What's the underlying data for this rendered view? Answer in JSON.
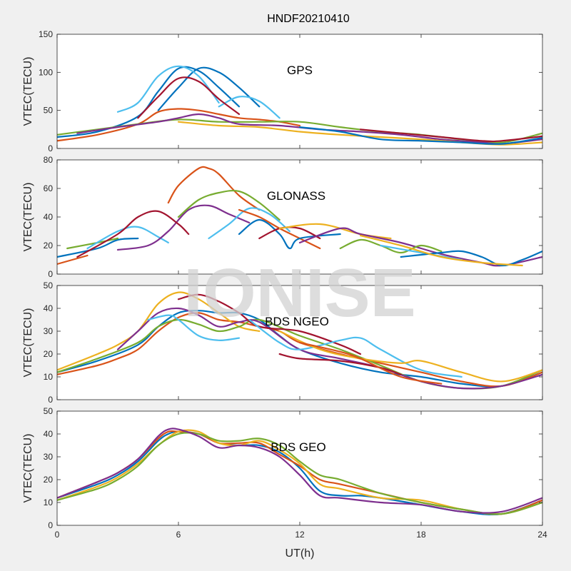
{
  "figure": {
    "title": "HNDF20210410",
    "xlabel": "UT(h)",
    "watermark": "IONISE"
  },
  "chart_data": [
    {
      "type": "line",
      "label": "GPS",
      "ylabel": "VTEC(TECU)",
      "xlim": [
        0,
        24
      ],
      "ylim": [
        0,
        150
      ],
      "xticks": [
        0,
        6,
        12,
        18,
        24
      ],
      "yticks": [
        0,
        50,
        100,
        150
      ],
      "grid": false,
      "series": [
        {
          "color": "#0072bd",
          "x": [
            0,
            2,
            4,
            5,
            6,
            7,
            8,
            9
          ],
          "y": [
            15,
            22,
            42,
            75,
            105,
            102,
            80,
            55
          ]
        },
        {
          "color": "#0072bd",
          "x": [
            5,
            6,
            7,
            8,
            9,
            10
          ],
          "y": [
            50,
            80,
            105,
            100,
            80,
            55
          ]
        },
        {
          "color": "#4dbeee",
          "x": [
            3,
            4,
            5,
            6,
            7,
            8
          ],
          "y": [
            48,
            60,
            95,
            108,
            95,
            60
          ]
        },
        {
          "color": "#4dbeee",
          "x": [
            8,
            9,
            10,
            11
          ],
          "y": [
            55,
            68,
            62,
            40
          ]
        },
        {
          "color": "#a2142f",
          "x": [
            4,
            5,
            6,
            7,
            8,
            9
          ],
          "y": [
            40,
            68,
            92,
            88,
            65,
            45
          ]
        },
        {
          "color": "#d95319",
          "x": [
            0,
            2,
            4,
            5,
            6,
            7,
            8,
            9,
            10,
            11,
            12
          ],
          "y": [
            10,
            18,
            32,
            48,
            52,
            50,
            45,
            40,
            38,
            35,
            30
          ]
        },
        {
          "color": "#77ac30",
          "x": [
            0,
            2,
            4,
            6,
            8,
            10,
            12,
            14,
            16,
            18,
            20,
            22,
            24
          ],
          "y": [
            18,
            25,
            32,
            38,
            35,
            35,
            35,
            28,
            22,
            18,
            12,
            8,
            20
          ]
        },
        {
          "color": "#7e2f8e",
          "x": [
            1,
            3,
            5,
            6,
            7,
            8,
            9,
            11,
            13,
            15,
            17,
            19,
            21,
            22,
            24
          ],
          "y": [
            20,
            28,
            35,
            40,
            45,
            40,
            32,
            30,
            25,
            22,
            18,
            12,
            8,
            6,
            12
          ]
        },
        {
          "color": "#edb120",
          "x": [
            6,
            8,
            10,
            12,
            14,
            16,
            18,
            20,
            22,
            24
          ],
          "y": [
            35,
            30,
            28,
            22,
            18,
            15,
            12,
            8,
            5,
            8
          ]
        },
        {
          "color": "#0072bd",
          "x": [
            12,
            14,
            16,
            18,
            20,
            22,
            24
          ],
          "y": [
            28,
            22,
            12,
            10,
            8,
            6,
            14
          ]
        },
        {
          "color": "#a2142f",
          "x": [
            15,
            17,
            19,
            21,
            22,
            24
          ],
          "y": [
            25,
            20,
            15,
            10,
            10,
            16
          ]
        }
      ]
    },
    {
      "type": "line",
      "label": "GLONASS",
      "ylabel": "VTEC(TECU)",
      "xlim": [
        0,
        24
      ],
      "ylim": [
        0,
        80
      ],
      "xticks": [
        0,
        6,
        12,
        18,
        24
      ],
      "yticks": [
        0,
        20,
        40,
        60,
        80
      ],
      "grid": false,
      "series": [
        {
          "color": "#0072bd",
          "x": [
            0,
            2,
            3,
            4
          ],
          "y": [
            12,
            18,
            24,
            25
          ]
        },
        {
          "color": "#d95319",
          "x": [
            0,
            1.5
          ],
          "y": [
            7,
            13
          ]
        },
        {
          "color": "#77ac30",
          "x": [
            0.5,
            2,
            3
          ],
          "y": [
            18,
            22,
            25
          ]
        },
        {
          "color": "#4dbeee",
          "x": [
            1.5,
            3,
            4,
            5,
            5.5
          ],
          "y": [
            18,
            30,
            33,
            26,
            22
          ]
        },
        {
          "color": "#7e2f8e",
          "x": [
            3,
            4.5,
            5.5,
            6.5,
            7.5,
            8.5,
            9.5
          ],
          "y": [
            17,
            20,
            30,
            45,
            48,
            42,
            36
          ]
        },
        {
          "color": "#a2142f",
          "x": [
            1,
            3,
            4,
            5,
            6,
            6.5
          ],
          "y": [
            12,
            28,
            40,
            44,
            35,
            28
          ]
        },
        {
          "color": "#d95319",
          "x": [
            5.5,
            6,
            7,
            7.5,
            8,
            9,
            10
          ],
          "y": [
            50,
            62,
            74,
            74,
            70,
            55,
            45
          ]
        },
        {
          "color": "#77ac30",
          "x": [
            6,
            7,
            8,
            9,
            10,
            11
          ],
          "y": [
            40,
            52,
            57,
            58,
            50,
            38
          ]
        },
        {
          "color": "#4dbeee",
          "x": [
            7.5,
            8.5,
            9.5,
            10.5,
            11.5
          ],
          "y": [
            25,
            35,
            46,
            42,
            30
          ]
        },
        {
          "color": "#d95319",
          "x": [
            9,
            10,
            11,
            12,
            13
          ],
          "y": [
            45,
            40,
            32,
            25,
            18
          ]
        },
        {
          "color": "#0072bd",
          "x": [
            9,
            10,
            11,
            11.5,
            12,
            14
          ],
          "y": [
            28,
            38,
            28,
            18,
            25,
            28
          ]
        },
        {
          "color": "#a2142f",
          "x": [
            10,
            11,
            12,
            13
          ],
          "y": [
            25,
            32,
            32,
            25
          ]
        },
        {
          "color": "#edb120",
          "x": [
            11,
            13,
            15,
            16.5
          ],
          "y": [
            32,
            35,
            28,
            25
          ]
        },
        {
          "color": "#7e2f8e",
          "x": [
            12,
            14,
            15,
            17,
            19,
            21,
            22,
            24
          ],
          "y": [
            22,
            32,
            28,
            22,
            14,
            8,
            6,
            12
          ]
        },
        {
          "color": "#77ac30",
          "x": [
            14,
            15,
            16,
            17,
            18,
            19
          ],
          "y": [
            18,
            24,
            20,
            15,
            20,
            16
          ]
        },
        {
          "color": "#4dbeee",
          "x": [
            16,
            18,
            20
          ],
          "y": [
            20,
            15,
            10
          ]
        },
        {
          "color": "#0072bd",
          "x": [
            17,
            19,
            20,
            21,
            22,
            23,
            24
          ],
          "y": [
            12,
            15,
            16,
            12,
            6,
            10,
            16
          ]
        },
        {
          "color": "#edb120",
          "x": [
            15,
            17,
            19,
            21,
            23
          ],
          "y": [
            27,
            20,
            12,
            8,
            6
          ]
        }
      ]
    },
    {
      "type": "line",
      "label": "BDS NGEO",
      "ylabel": "VTEC(TECU)",
      "xlim": [
        0,
        24
      ],
      "ylim": [
        0,
        50
      ],
      "xticks": [
        0,
        6,
        12,
        18,
        24
      ],
      "yticks": [
        0,
        10,
        20,
        30,
        40,
        50
      ],
      "grid": false,
      "series": [
        {
          "color": "#0072bd",
          "x": [
            0,
            2,
            4,
            5,
            6,
            7,
            8,
            9,
            10,
            11,
            12,
            14,
            16,
            18,
            20,
            22,
            24
          ],
          "y": [
            12,
            17,
            24,
            32,
            38,
            39,
            38,
            38,
            35,
            28,
            22,
            16,
            12,
            10,
            7,
            6,
            12
          ]
        },
        {
          "color": "#d95319",
          "x": [
            0,
            2,
            3,
            4,
            5,
            6,
            7,
            8,
            9,
            10,
            11,
            12,
            14,
            16,
            18,
            20,
            22,
            24
          ],
          "y": [
            11,
            15,
            18,
            22,
            30,
            36,
            38,
            35,
            34,
            32,
            30,
            25,
            20,
            16,
            12,
            8,
            6,
            12
          ]
        },
        {
          "color": "#edb120",
          "x": [
            0,
            2,
            3,
            4,
            5,
            6,
            7,
            8,
            9,
            10
          ],
          "y": [
            13,
            20,
            24,
            30,
            42,
            47,
            44,
            38,
            32,
            30
          ]
        },
        {
          "color": "#77ac30",
          "x": [
            0,
            2,
            4,
            5,
            6,
            7,
            8,
            9,
            10,
            12,
            14,
            16,
            18,
            20,
            22,
            24
          ],
          "y": [
            12,
            18,
            25,
            32,
            35,
            33,
            30,
            32,
            35,
            28,
            22,
            15,
            8,
            5,
            6,
            13
          ]
        },
        {
          "color": "#7e2f8e",
          "x": [
            3,
            4,
            5,
            6,
            7,
            8,
            9,
            10,
            12,
            14,
            16,
            18,
            20,
            22,
            24
          ],
          "y": [
            22,
            30,
            38,
            40,
            37,
            32,
            34,
            34,
            22,
            18,
            14,
            8,
            5,
            6,
            11
          ]
        },
        {
          "color": "#a2142f",
          "x": [
            6,
            7,
            8,
            9,
            10,
            12,
            14,
            15
          ],
          "y": [
            44,
            46,
            43,
            38,
            32,
            30,
            24,
            20
          ]
        },
        {
          "color": "#4dbeee",
          "x": [
            4.5,
            5.5,
            6,
            7,
            8,
            9
          ],
          "y": [
            35,
            37,
            35,
            28,
            26,
            27
          ]
        },
        {
          "color": "#4dbeee",
          "x": [
            9.5,
            11,
            12,
            14,
            15,
            16,
            18,
            20
          ],
          "y": [
            35,
            25,
            22,
            26,
            27,
            22,
            13,
            10
          ]
        },
        {
          "color": "#edb120",
          "x": [
            11,
            13,
            15,
            17,
            18,
            20,
            22,
            24
          ],
          "y": [
            30,
            22,
            18,
            16,
            17,
            12,
            8,
            13
          ]
        },
        {
          "color": "#a2142f",
          "x": [
            11,
            12,
            14,
            16,
            17
          ],
          "y": [
            20,
            18,
            17,
            14,
            11
          ]
        },
        {
          "color": "#d95319",
          "x": [
            12,
            14,
            15,
            17,
            19
          ],
          "y": [
            25,
            21,
            18,
            10,
            7
          ]
        }
      ]
    },
    {
      "type": "line",
      "label": "BDS GEO",
      "ylabel": "VTEC(TECU)",
      "xlim": [
        0,
        24
      ],
      "ylim": [
        0,
        50
      ],
      "xticks": [
        0,
        6,
        12,
        18,
        24
      ],
      "yticks": [
        0,
        10,
        20,
        30,
        40,
        50
      ],
      "grid": false,
      "series": [
        {
          "color": "#0072bd",
          "x": [
            0,
            2,
            3,
            4,
            5,
            5.5,
            6,
            7,
            8,
            9,
            10,
            11,
            12,
            13,
            14,
            15,
            16,
            18,
            20,
            22,
            24
          ],
          "y": [
            12,
            18,
            22,
            28,
            37,
            40,
            41,
            40,
            36,
            35,
            35,
            32,
            25,
            15,
            13,
            13,
            12,
            9,
            6,
            5,
            11
          ]
        },
        {
          "color": "#d95319",
          "x": [
            0,
            2,
            3,
            4,
            5,
            5.5,
            6,
            7,
            8,
            9,
            10,
            11,
            12,
            13,
            14,
            16,
            18,
            20,
            22,
            24
          ],
          "y": [
            12,
            19,
            23,
            29,
            38,
            41,
            41,
            40,
            36,
            36,
            36,
            31,
            26,
            20,
            18,
            14,
            10,
            7,
            5,
            11
          ]
        },
        {
          "color": "#edb120",
          "x": [
            0,
            2,
            3,
            4,
            5,
            6,
            7,
            8,
            9,
            10,
            11,
            12,
            13,
            14,
            16,
            18,
            20,
            22,
            24
          ],
          "y": [
            11,
            17,
            21,
            27,
            35,
            41,
            41,
            36,
            35,
            37,
            33,
            27,
            18,
            16,
            12,
            11,
            7,
            5,
            10
          ]
        },
        {
          "color": "#77ac30",
          "x": [
            0,
            2,
            3,
            4,
            5,
            6,
            7,
            8,
            9,
            10,
            11,
            12,
            13,
            14,
            16,
            18,
            20,
            22,
            24
          ],
          "y": [
            11,
            16,
            20,
            26,
            35,
            40,
            40,
            37,
            37,
            38,
            35,
            28,
            22,
            20,
            14,
            10,
            7,
            5,
            10
          ]
        },
        {
          "color": "#7e2f8e",
          "x": [
            0,
            2,
            3,
            4,
            5,
            5.5,
            6,
            7,
            8,
            9,
            10,
            11,
            12,
            13,
            14,
            16,
            18,
            20,
            22,
            24
          ],
          "y": [
            12,
            19,
            23,
            29,
            39,
            42,
            42,
            39,
            34,
            35,
            34,
            30,
            22,
            13,
            12,
            10,
            9,
            6,
            6,
            12
          ]
        }
      ]
    }
  ]
}
